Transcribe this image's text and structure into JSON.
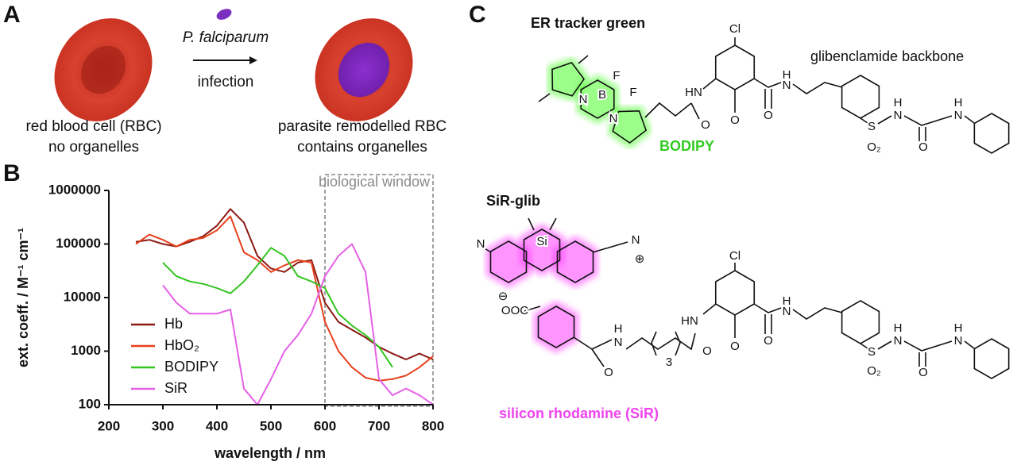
{
  "panel_labels": [
    "A",
    "B",
    "C"
  ],
  "panel_a": {
    "parasite": "P. falciparum",
    "arrow_label": "infection",
    "left_caption": [
      "red blood cell (RBC)",
      "no organelles"
    ],
    "right_caption": [
      "parasite remodelled RBC",
      "contains organelles"
    ]
  },
  "chart_data": {
    "type": "line",
    "x_label": "wavelength / nm",
    "y_label": "ext. coeff. / M⁻¹ cm⁻¹",
    "x": [
      250,
      275,
      300,
      325,
      350,
      375,
      400,
      425,
      450,
      475,
      500,
      525,
      550,
      575,
      600,
      625,
      650,
      675,
      700,
      725,
      750,
      775,
      800
    ],
    "series": [
      {
        "name": "Hb",
        "color": "#8b1a12",
        "values": [
          110000,
          120000,
          100000,
          90000,
          110000,
          140000,
          220000,
          450000,
          250000,
          60000,
          35000,
          30000,
          45000,
          50000,
          8000,
          3500,
          2500,
          1800,
          1200,
          900,
          700,
          900,
          700
        ]
      },
      {
        "name": "HbO₂",
        "color": "#e8401c",
        "values": [
          100000,
          150000,
          120000,
          90000,
          120000,
          130000,
          180000,
          330000,
          70000,
          50000,
          30000,
          40000,
          50000,
          45000,
          3500,
          1000,
          500,
          320,
          280,
          300,
          350,
          500,
          800
        ]
      },
      {
        "name": "BODIPY",
        "color": "#33c41f",
        "values": [
          null,
          null,
          45000,
          25000,
          20000,
          18000,
          15000,
          12000,
          20000,
          40000,
          85000,
          60000,
          25000,
          20000,
          15000,
          5000,
          3000,
          2000,
          1200,
          500,
          null,
          null,
          null
        ]
      },
      {
        "name": "SiR",
        "color": "#e660e6",
        "values": [
          null,
          null,
          17000,
          8000,
          5000,
          5000,
          5000,
          6000,
          200,
          100,
          300,
          1000,
          2000,
          5000,
          25000,
          60000,
          100000,
          30000,
          300,
          150,
          200,
          150,
          100
        ]
      }
    ],
    "xlim": [
      200,
      800
    ],
    "xticks": [
      200,
      300,
      400,
      500,
      600,
      700,
      800
    ],
    "ylim": [
      100,
      1000000
    ],
    "yticks": [
      100,
      1000,
      10000,
      100000,
      1000000
    ],
    "yscale": "log",
    "legend": "lower left",
    "window": {
      "label": "biological window",
      "x_range": [
        600,
        800
      ]
    }
  },
  "panel_c": {
    "er_tracker": {
      "title": "ER tracker green",
      "backbone_label": "glibenclamide backbone",
      "dye_label": "BODIPY",
      "atoms": [
        "F",
        "F",
        "B",
        "N",
        "N",
        "HN",
        "O",
        "O",
        "Cl",
        "O",
        "H",
        "N",
        "S",
        "O₂",
        "H",
        "N",
        "O",
        "H",
        "N"
      ]
    },
    "sir_glib": {
      "title": "SiR-glib",
      "dye_label": "silicon rhodamine (SiR)",
      "atoms": [
        "N",
        "Si",
        "N",
        "⊕",
        "⊖",
        "OOC",
        "H",
        "N",
        "O",
        "3",
        "HN",
        "O",
        "O",
        "O",
        "Cl",
        "H",
        "N",
        "S",
        "O₂",
        "H",
        "N",
        "O",
        "H",
        "N"
      ]
    }
  }
}
